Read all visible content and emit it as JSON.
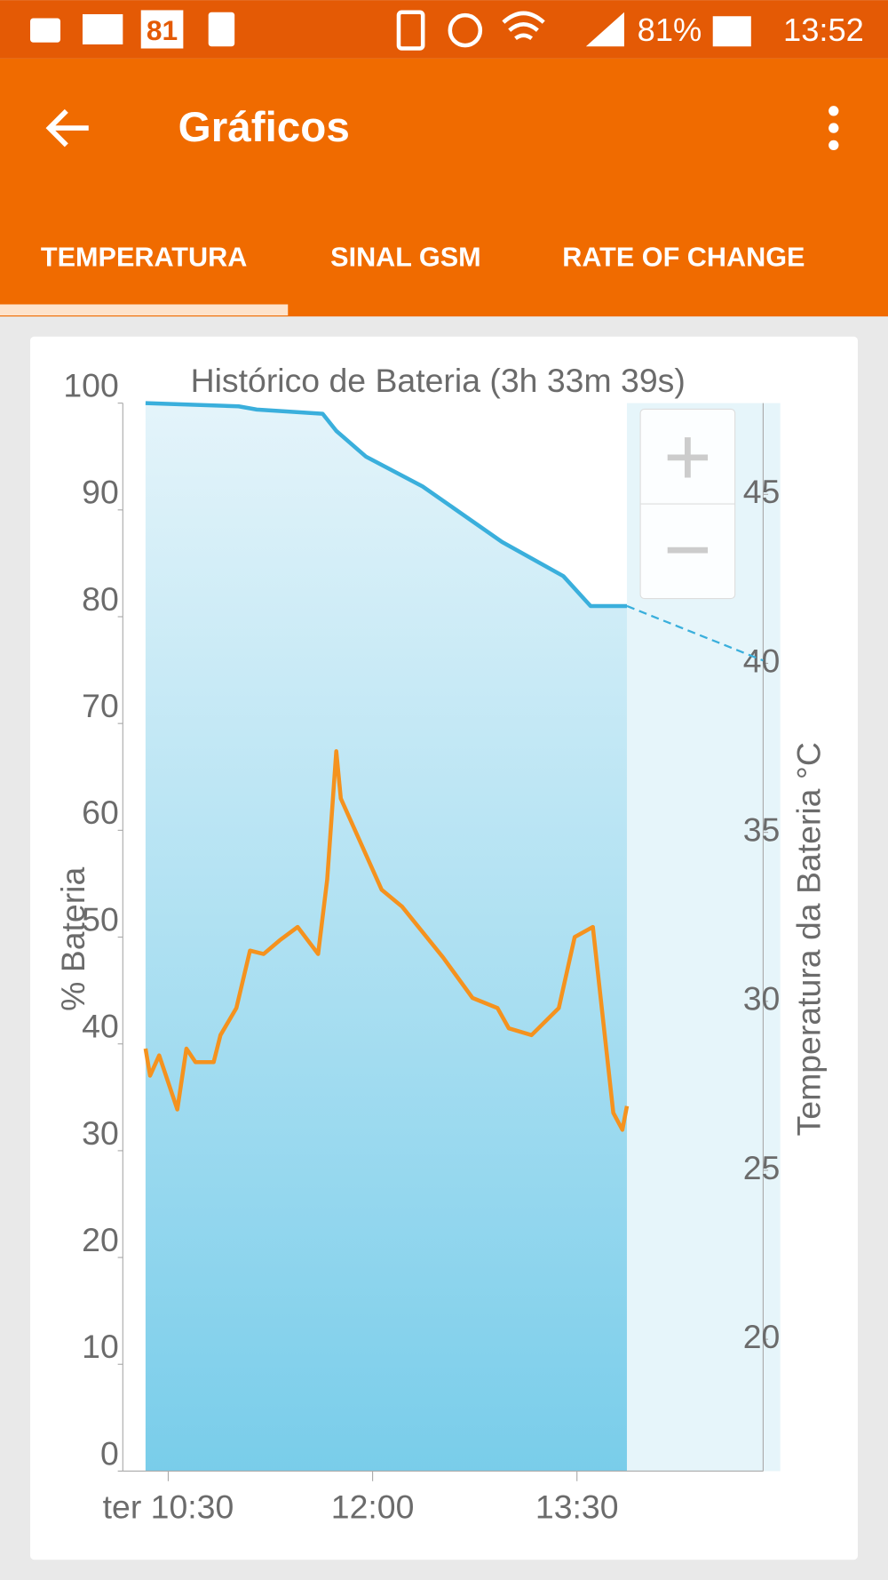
{
  "status_bar": {
    "calendar": "81",
    "battery": "81%",
    "time": "13:52"
  },
  "app_bar": {
    "title": "Gráficos"
  },
  "tabs": [
    "TEMPERATURA",
    "SINAL GSM",
    "RATE OF CHANGE"
  ],
  "chart_data": {
    "type": "line",
    "title": "Histórico de Bateria (3h 33m 39s)",
    "y_label": "% Bateria",
    "y2_label": "Temperatura da Bateria °C",
    "xlim": [
      "10:10",
      "14:52"
    ],
    "xticks": [
      {
        "value": "10:30",
        "label": "ter 10:30"
      },
      "12:00",
      "13:30"
    ],
    "ylim": [
      0,
      100
    ],
    "yticks": [
      0,
      10,
      20,
      30,
      40,
      50,
      60,
      70,
      80,
      90,
      100
    ],
    "y2lim": [
      16.1,
      47.7
    ],
    "y2ticks": [
      20,
      25,
      30,
      35,
      40,
      45
    ],
    "series": [
      {
        "color": "#3aafdc",
        "x": [
          "10:20",
          "11:01",
          "11:09",
          "11:38",
          "11:44",
          "11:57",
          "12:22",
          "12:57",
          "13:24",
          "13:36",
          "13:52"
        ],
        "values": [
          100,
          99.7,
          99.4,
          99.0,
          97.4,
          95.0,
          92.2,
          87.0,
          83.8,
          81.0,
          81.0
        ]
      },
      {
        "color": "#3aafdc",
        "style": "dashed",
        "x": [
          "13:52",
          "14:52"
        ],
        "values": [
          81.0,
          75.9
        ]
      },
      {
        "color": "#f5921e",
        "axis": "y2",
        "x": [
          "10:20",
          "10:22",
          "10:26",
          "10:34",
          "10:38",
          "10:42",
          "10:50",
          "10:53",
          "11:00",
          "11:06",
          "11:12",
          "11:19",
          "11:27",
          "11:36",
          "11:40",
          "11:44",
          "11:46",
          "12:04",
          "12:13",
          "12:31",
          "12:44",
          "12:55",
          "13:00",
          "13:10",
          "13:22",
          "13:29",
          "13:37",
          "13:46",
          "13:50",
          "13:52"
        ],
        "values": [
          28.6,
          27.8,
          28.4,
          26.8,
          28.6,
          28.2,
          28.2,
          29.0,
          29.8,
          31.5,
          31.4,
          31.8,
          32.2,
          31.4,
          33.6,
          37.4,
          36.0,
          33.3,
          32.8,
          31.3,
          30.1,
          29.8,
          29.2,
          29.0,
          29.8,
          31.9,
          32.2,
          26.7,
          26.2,
          26.9
        ]
      }
    ]
  }
}
